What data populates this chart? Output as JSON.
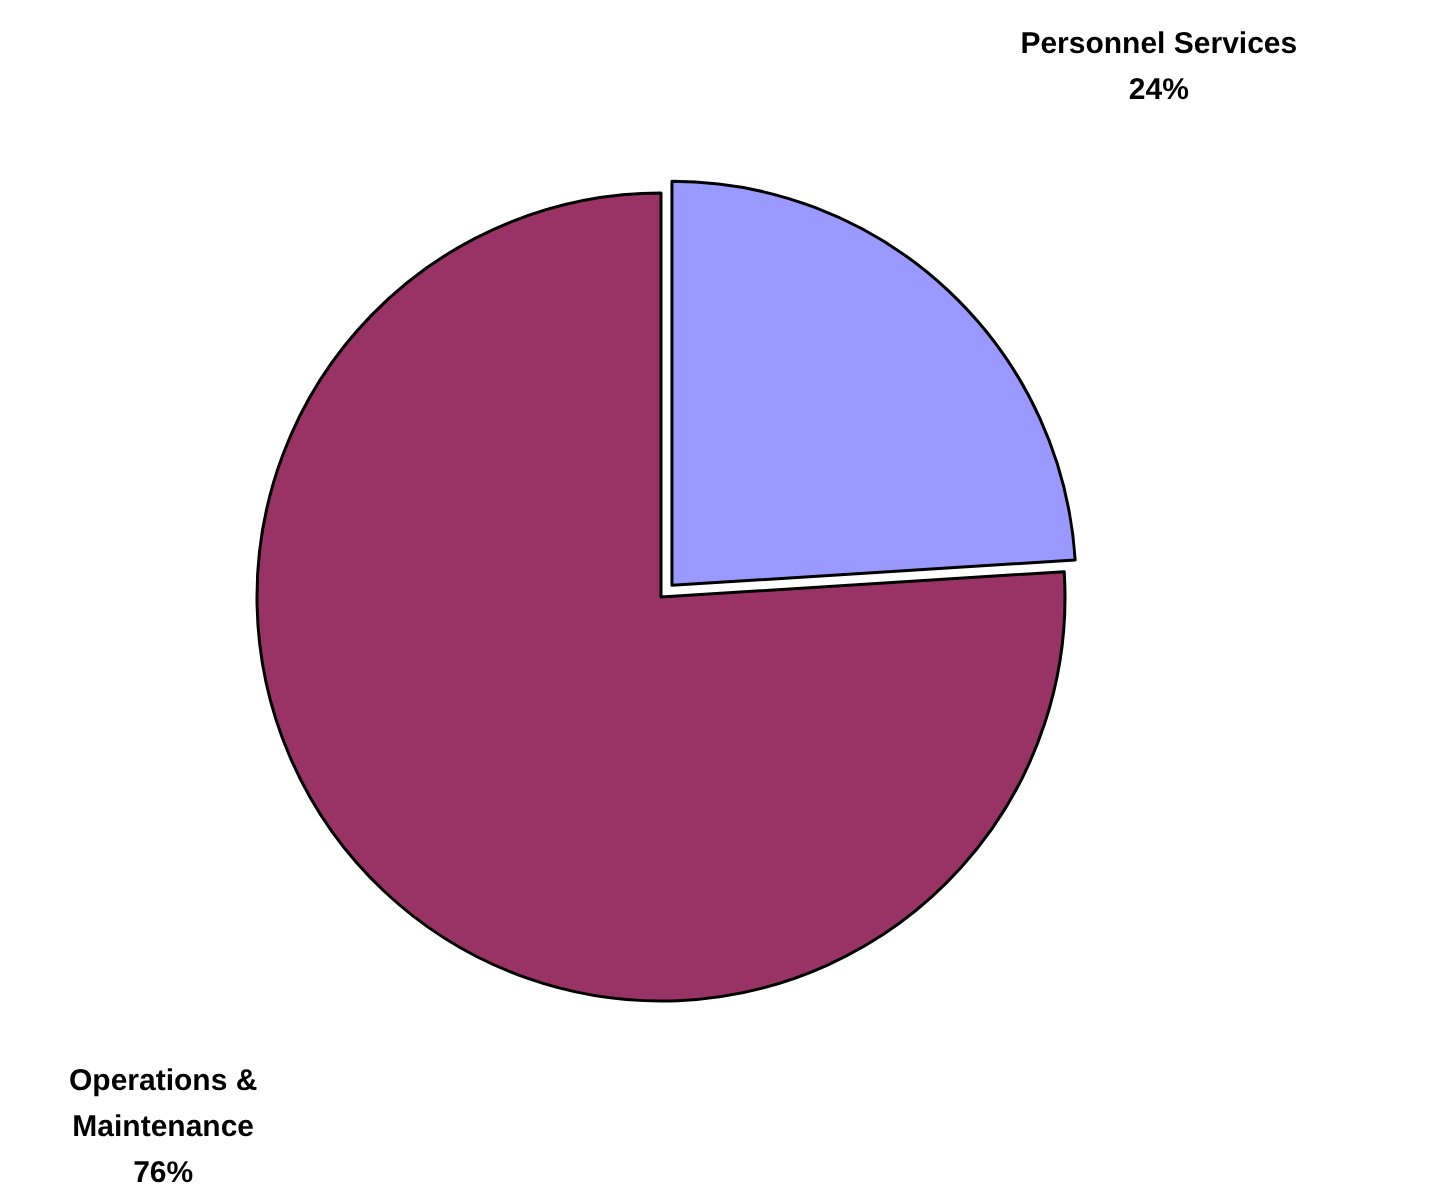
{
  "chart_data": {
    "type": "pie",
    "categories": [
      "Personnel Services",
      "Operations & Maintenance"
    ],
    "values": [
      24,
      76
    ],
    "colors": [
      "#9999ff",
      "#993366"
    ],
    "value_labels": [
      "24%",
      "76%"
    ]
  }
}
